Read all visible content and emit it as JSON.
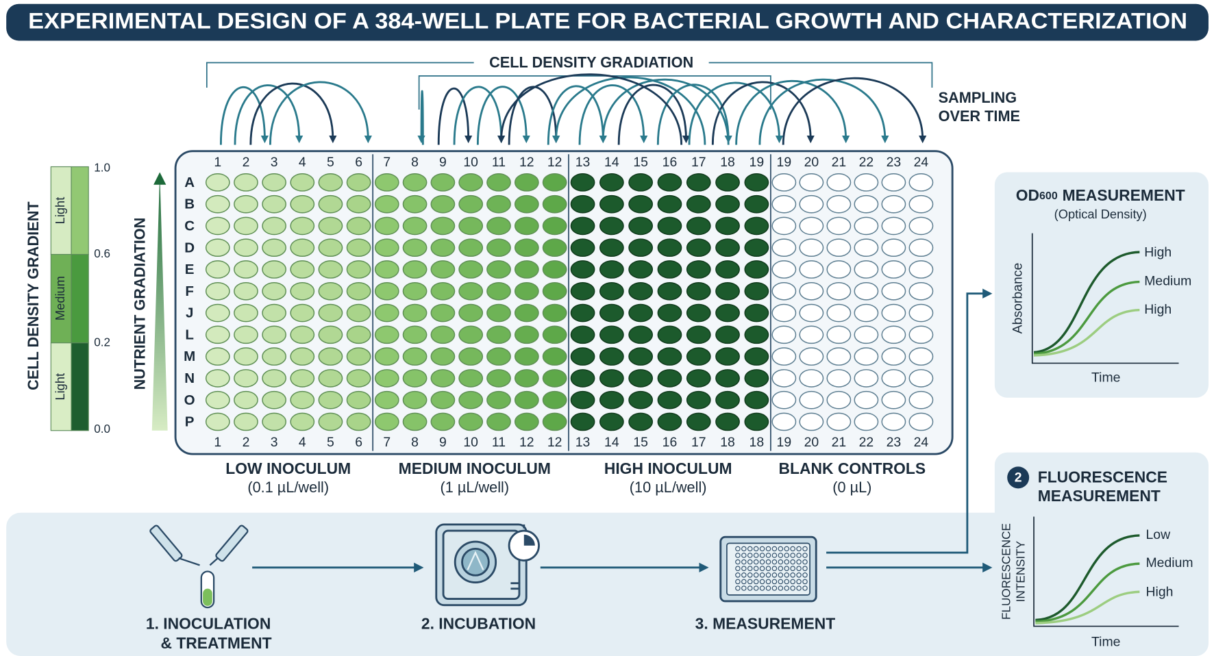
{
  "header": {
    "title": "EXPERIMENTAL DESIGN OF A 384-WELL PLATE FOR BACTERIAL GROWTH AND CHARACTERIZATION"
  },
  "top": {
    "gradiation": "CELL DENSITY GRADIATION",
    "sampling": [
      "SAMPLING",
      "OVER TIME"
    ]
  },
  "legend": {
    "title": "CELL DENSITY GRADIENT",
    "segments": [
      "Light",
      "Medium",
      "Light"
    ],
    "ticks": [
      "1.0",
      "0.6",
      "0.2",
      "0.0"
    ]
  },
  "nutrient": "NUTRIENT GRADIATION",
  "plate": {
    "top_columns": [
      1,
      2,
      3,
      4,
      5,
      6,
      7,
      8,
      9,
      10,
      11,
      12,
      12,
      13,
      14,
      15,
      16,
      17,
      18,
      19,
      19,
      20,
      21,
      22,
      23,
      24
    ],
    "bottom_columns": [
      1,
      2,
      3,
      4,
      5,
      6,
      7,
      8,
      9,
      10,
      11,
      12,
      12,
      13,
      14,
      15,
      16,
      17,
      18,
      18,
      19,
      20,
      21,
      22,
      23,
      24
    ],
    "rows": [
      "A",
      "B",
      "C",
      "D",
      "E",
      "F",
      "J",
      "L",
      "M",
      "N",
      "O",
      "P"
    ],
    "groups": [
      {
        "name": "LOW INOCULUM",
        "volume": "(0.1 µL/well)"
      },
      {
        "name": "MEDIUM INOCULUM",
        "volume": "(1 µL/well)"
      },
      {
        "name": "HIGH INOCULUM",
        "volume": "(10 µL/well)"
      },
      {
        "name": "BLANK CONTROLS",
        "volume": "(0 µL)"
      }
    ]
  },
  "od600": {
    "title": "OD",
    "subscript": "600",
    "title_rest": "MEASUREMENT",
    "subtitle": "(Optical Density)",
    "y_label": "Absorbance",
    "x_label": "Time",
    "curves": [
      "High",
      "Medium",
      "High"
    ]
  },
  "fluorescence": {
    "badge": "2",
    "title": [
      "FLUORESCENCE",
      "MEASUREMENT"
    ],
    "y_label": [
      "FLUORESCENCE",
      "INTENSITY"
    ],
    "x_label": "Time",
    "curves": [
      "Low",
      "Medium",
      "High"
    ]
  },
  "workflow": [
    {
      "label": [
        "1. INOCULATION",
        "& TREATMENT"
      ]
    },
    {
      "label": [
        "2. INCUBATION"
      ]
    },
    {
      "label": [
        "3. MEASUREMENT"
      ]
    }
  ]
}
